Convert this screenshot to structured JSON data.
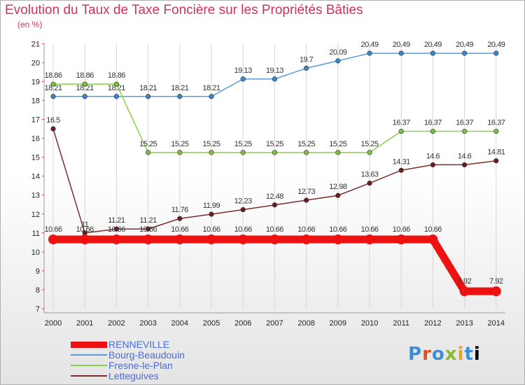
{
  "chart_data": {
    "type": "line",
    "title": "Evolution du Taux de Taxe Foncière sur les Propriétés Bâties",
    "unit_label": "(en %)",
    "xlabel": "",
    "ylabel": "",
    "x": [
      "2000",
      "2001",
      "2002",
      "2003",
      "2004",
      "2005",
      "2006",
      "2007",
      "2008",
      "2009",
      "2010",
      "2011",
      "2012",
      "2013",
      "2014"
    ],
    "ylim": [
      7,
      21
    ],
    "yticks": [
      7,
      8,
      9,
      10,
      11,
      12,
      13,
      14,
      15,
      16,
      17,
      18,
      19,
      20,
      21
    ],
    "grid": "vertical",
    "legend_position": "bottom-left",
    "series": [
      {
        "name": "Bourg-Beaudouin",
        "color": "#5b9bd5",
        "marker": "#3a86c8",
        "values": [
          18.21,
          18.21,
          18.21,
          18.21,
          18.21,
          18.21,
          19.13,
          19.13,
          19.7,
          20.09,
          20.49,
          20.49,
          20.49,
          20.49,
          20.49
        ],
        "labels": [
          "18.21",
          "18.21",
          "18.21",
          "18.21",
          "18.21",
          "18.21",
          "19.13",
          "19.13",
          "19.7",
          "20.09",
          "20.49",
          "20.49",
          "20.49",
          "20.49",
          "20.49"
        ]
      },
      {
        "name": "Fresne-le-Plan",
        "color": "#8ad04a",
        "marker": "#7bc043",
        "values": [
          18.86,
          18.86,
          18.86,
          15.25,
          15.25,
          15.25,
          15.25,
          15.25,
          15.25,
          15.25,
          15.25,
          16.37,
          16.37,
          16.37,
          16.37
        ],
        "labels": [
          "18.86",
          "18.86",
          "18.86",
          "15.25",
          "15.25",
          "15.25",
          "15.25",
          "15.25",
          "15.25",
          "15.25",
          "15.25",
          "16.37",
          "16.37",
          "16.37",
          "16.37"
        ]
      },
      {
        "name": "Letteguives",
        "color": "#7a2e2e",
        "marker": "#6b1d1d",
        "values": [
          16.5,
          11,
          11.21,
          11.21,
          11.76,
          11.99,
          12.23,
          12.48,
          12.73,
          12.98,
          13.63,
          14.31,
          14.6,
          14.6,
          14.81
        ],
        "labels": [
          "16.5",
          "11",
          "11.21",
          "11.21",
          "11.76",
          "11.99",
          "12.23",
          "12.48",
          "12.73",
          "12.98",
          "13.63",
          "14.31",
          "14.6",
          "14.6",
          "14.81"
        ]
      },
      {
        "name": "RENNEVILLE",
        "color": "#ee1111",
        "marker": "#ee1111",
        "values": [
          10.66,
          10.66,
          10.66,
          10.66,
          10.66,
          10.66,
          10.66,
          10.66,
          10.66,
          10.66,
          10.66,
          10.66,
          10.66,
          7.92,
          7.92
        ],
        "labels": [
          "10.66",
          "10.66",
          "10.66",
          "10.66",
          "10.66",
          "10.66",
          "10.66",
          "10.66",
          "10.66",
          "10.66",
          "10.66",
          "10.66",
          "10.66",
          "7.92",
          "7.92"
        ]
      }
    ],
    "legend": [
      "RENNEVILLE",
      "Bourg-Beaudouin",
      "Fresne-le-Plan",
      "Letteguives"
    ]
  },
  "brand": [
    "P",
    "r",
    "o",
    "x",
    "i",
    "t",
    "i"
  ]
}
